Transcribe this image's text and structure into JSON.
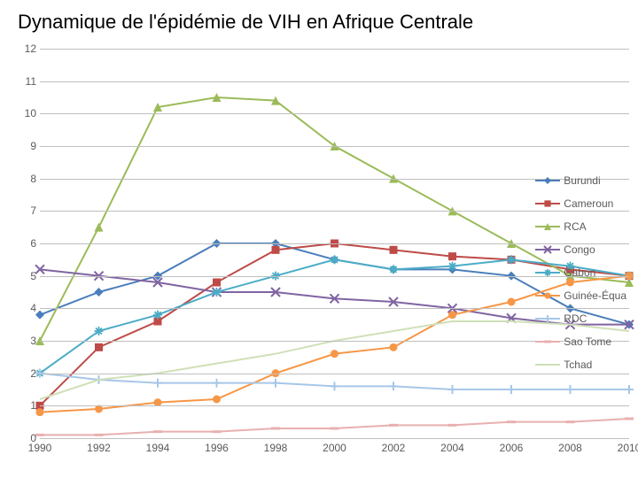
{
  "title": "Dynamique de l'épidémie de VIH en Afrique Centrale",
  "chart": {
    "type": "line",
    "background_color": "#ffffff",
    "grid_color": "#bfbfbf",
    "label_fontsize": 12,
    "label_color": "#5a5a5a",
    "line_width": 2,
    "marker_size": 6,
    "xlim": [
      1990,
      2010
    ],
    "ylim": [
      0,
      12
    ],
    "ytick_step": 1,
    "xtick_step": 2,
    "x_values": [
      1990,
      1992,
      1994,
      1996,
      1998,
      2000,
      2002,
      2004,
      2006,
      2008,
      2010
    ],
    "y_ticks": [
      0,
      1,
      2,
      3,
      4,
      5,
      6,
      7,
      8,
      9,
      10,
      11,
      12
    ],
    "x_ticks": [
      1990,
      1992,
      1994,
      1996,
      1998,
      2000,
      2002,
      2004,
      2006,
      2008,
      2010
    ],
    "series": [
      {
        "name": "Burundi",
        "color": "#4a7ebb",
        "marker": "diamond",
        "values": [
          3.8,
          4.5,
          5.0,
          6.0,
          6.0,
          5.5,
          5.2,
          5.2,
          5.0,
          4.0,
          3.5
        ]
      },
      {
        "name": "Cameroun",
        "color": "#be4b48",
        "marker": "square",
        "values": [
          1.0,
          2.8,
          3.6,
          4.8,
          5.8,
          6.0,
          5.8,
          5.6,
          5.5,
          5.2,
          5.0
        ]
      },
      {
        "name": "RCA",
        "color": "#9bbb59",
        "marker": "triangle",
        "values": [
          3.0,
          6.5,
          10.2,
          10.5,
          10.4,
          9.0,
          8.0,
          7.0,
          6.0,
          5.0,
          4.8
        ]
      },
      {
        "name": "Congo",
        "color": "#8064a2",
        "marker": "x",
        "values": [
          5.2,
          5.0,
          4.8,
          4.5,
          4.5,
          4.3,
          4.2,
          4.0,
          3.7,
          3.5,
          3.5
        ]
      },
      {
        "name": "Gabon",
        "color": "#4bacc6",
        "marker": "asterisk",
        "values": [
          2.0,
          3.3,
          3.8,
          4.5,
          5.0,
          5.5,
          5.2,
          5.3,
          5.5,
          5.3,
          5.0
        ]
      },
      {
        "name": "Guinée-Équa",
        "color": "#f79646",
        "marker": "circle",
        "values": [
          0.8,
          0.9,
          1.1,
          1.2,
          2.0,
          2.6,
          2.8,
          3.8,
          4.2,
          4.8,
          5.0
        ]
      },
      {
        "name": "RDC",
        "color": "#a6c7e8",
        "marker": "plus",
        "values": [
          2.0,
          1.8,
          1.7,
          1.7,
          1.7,
          1.6,
          1.6,
          1.5,
          1.5,
          1.5,
          1.5
        ]
      },
      {
        "name": "Sao Tome",
        "color": "#e8b0af",
        "marker": "dash",
        "values": [
          0.1,
          0.1,
          0.2,
          0.2,
          0.3,
          0.3,
          0.4,
          0.4,
          0.5,
          0.5,
          0.6
        ]
      },
      {
        "name": "Tchad",
        "color": "#cfe0b8",
        "marker": "none",
        "values": [
          1.2,
          1.8,
          2.0,
          2.3,
          2.6,
          3.0,
          3.3,
          3.6,
          3.6,
          3.5,
          3.3
        ]
      }
    ]
  }
}
